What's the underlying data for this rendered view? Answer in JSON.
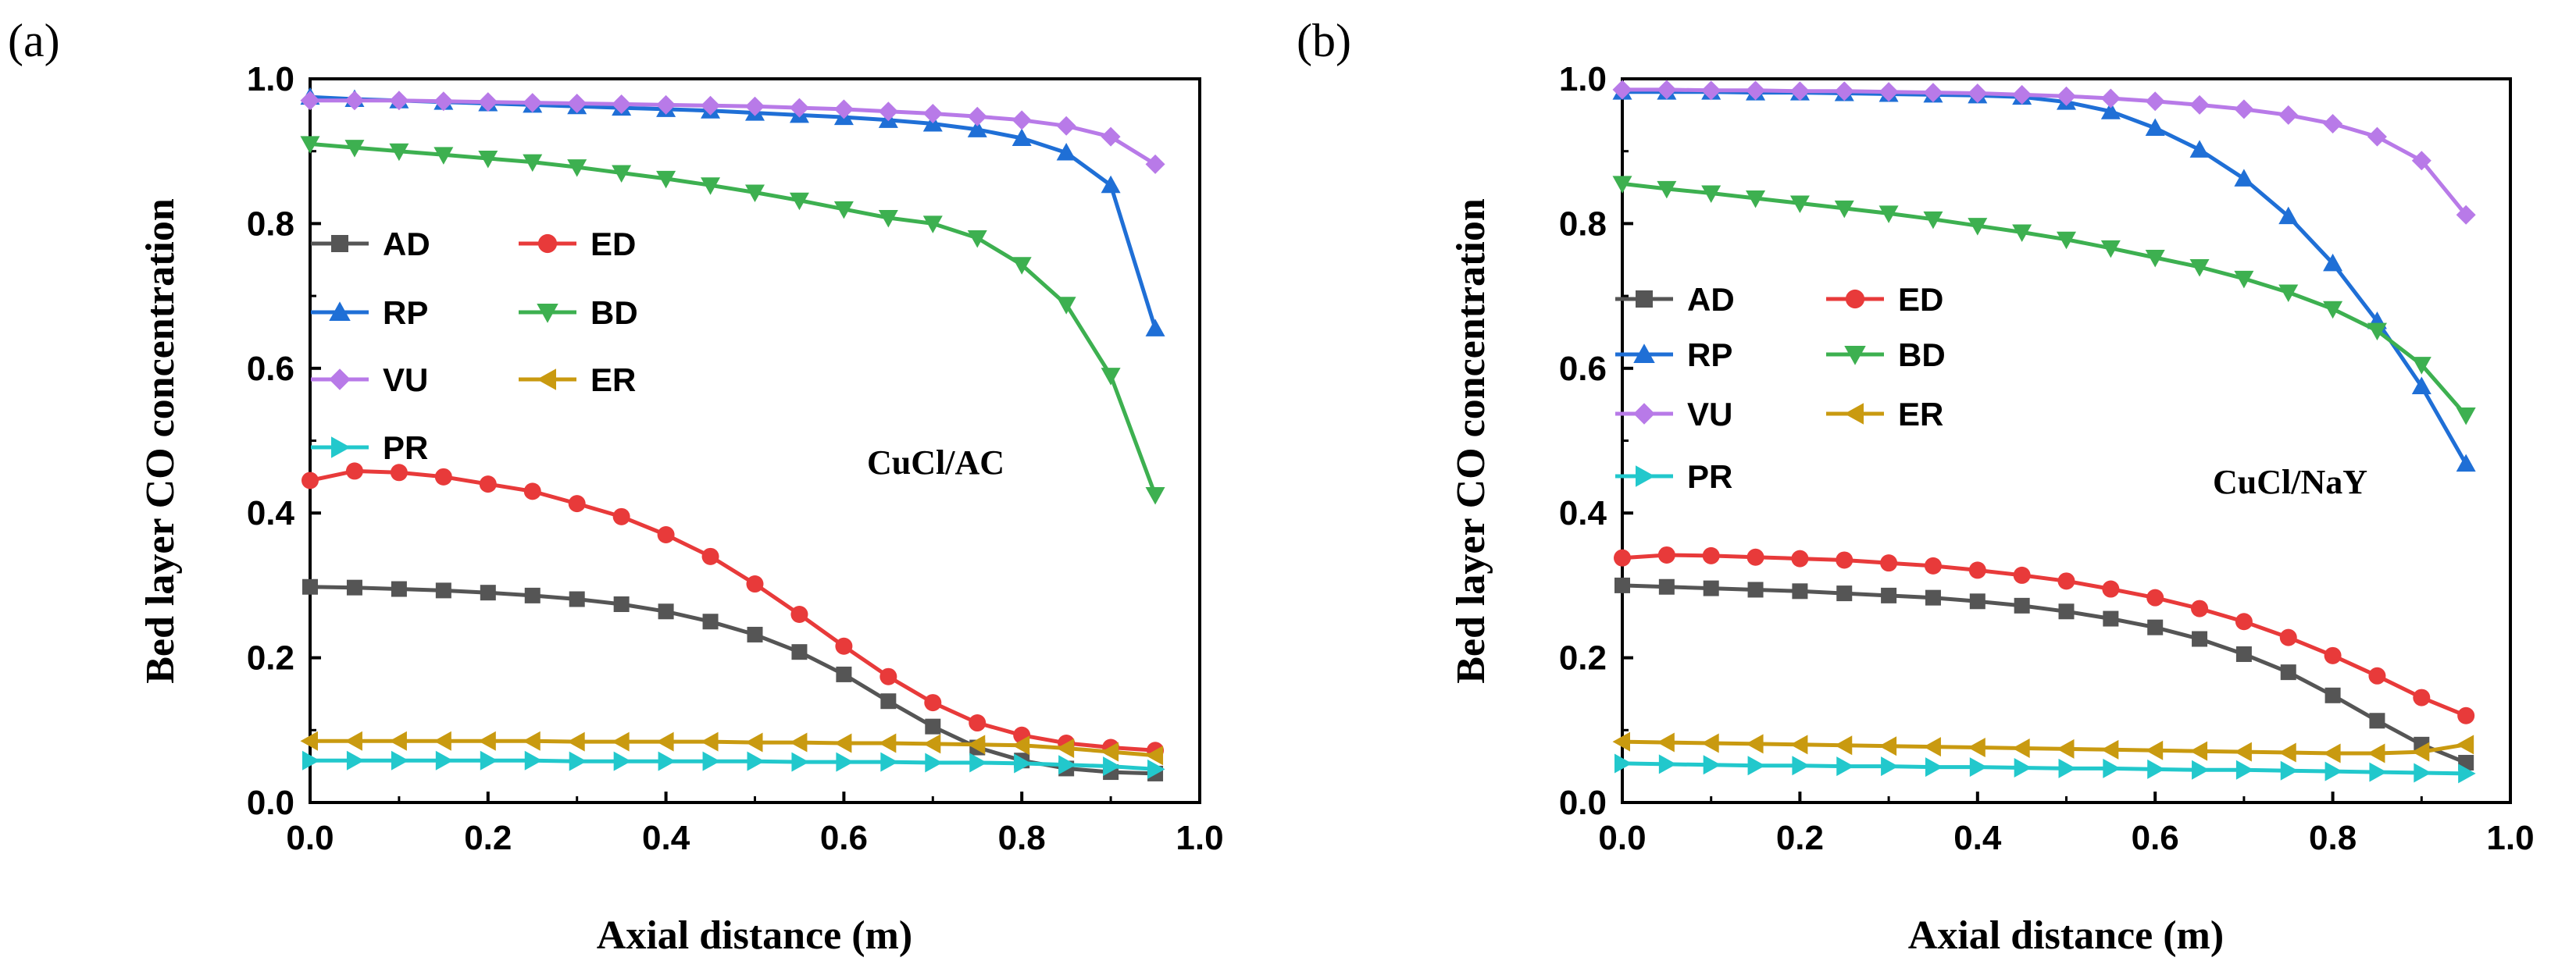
{
  "chart_data": [
    {
      "type": "line",
      "panel_label": "(a)",
      "annotation": "CuCl/AC",
      "xlabel": "Axial distance (m)",
      "ylabel": "Bed layer CO concentration",
      "xlim": [
        0.0,
        1.0
      ],
      "ylim": [
        0.0,
        1.0
      ],
      "xticks": [
        "0.0",
        "0.2",
        "0.4",
        "0.6",
        "0.8",
        "1.0"
      ],
      "yticks": [
        "0.0",
        "0.2",
        "0.4",
        "0.6",
        "0.8",
        "1.0"
      ],
      "legend_position": "middle-left",
      "x": [
        0.0,
        0.05,
        0.1,
        0.15,
        0.2,
        0.25,
        0.3,
        0.35,
        0.4,
        0.45,
        0.5,
        0.55,
        0.6,
        0.65,
        0.7,
        0.75,
        0.8,
        0.85,
        0.9,
        0.95
      ],
      "series": [
        {
          "name": "AD",
          "color": "#555555",
          "marker": "square",
          "values": [
            0.298,
            0.297,
            0.295,
            0.293,
            0.29,
            0.286,
            0.281,
            0.274,
            0.264,
            0.25,
            0.232,
            0.208,
            0.177,
            0.14,
            0.105,
            0.076,
            0.058,
            0.047,
            0.042,
            0.04
          ]
        },
        {
          "name": "ED",
          "color": "#e83a3a",
          "marker": "circle",
          "values": [
            0.445,
            0.458,
            0.456,
            0.45,
            0.44,
            0.43,
            0.413,
            0.395,
            0.37,
            0.34,
            0.302,
            0.26,
            0.216,
            0.174,
            0.138,
            0.11,
            0.093,
            0.082,
            0.076,
            0.072
          ]
        },
        {
          "name": "RP",
          "color": "#1f6fd6",
          "marker": "triangle-up",
          "values": [
            0.975,
            0.972,
            0.97,
            0.968,
            0.966,
            0.964,
            0.962,
            0.96,
            0.958,
            0.956,
            0.953,
            0.95,
            0.947,
            0.943,
            0.938,
            0.93,
            0.918,
            0.898,
            0.853,
            0.655
          ]
        },
        {
          "name": "BD",
          "color": "#3db050",
          "marker": "triangle-down",
          "values": [
            0.91,
            0.905,
            0.9,
            0.895,
            0.89,
            0.885,
            0.878,
            0.87,
            0.862,
            0.853,
            0.843,
            0.832,
            0.82,
            0.808,
            0.8,
            0.78,
            0.743,
            0.688,
            0.59,
            0.425
          ]
        },
        {
          "name": "VU",
          "color": "#b87ae8",
          "marker": "diamond",
          "values": [
            0.97,
            0.97,
            0.97,
            0.969,
            0.968,
            0.967,
            0.966,
            0.965,
            0.964,
            0.963,
            0.962,
            0.96,
            0.958,
            0.955,
            0.952,
            0.948,
            0.943,
            0.935,
            0.92,
            0.882
          ]
        },
        {
          "name": "ER",
          "color": "#c99a10",
          "marker": "triangle-left",
          "values": [
            0.085,
            0.085,
            0.085,
            0.085,
            0.085,
            0.085,
            0.084,
            0.084,
            0.084,
            0.084,
            0.083,
            0.083,
            0.082,
            0.082,
            0.081,
            0.08,
            0.079,
            0.075,
            0.07,
            0.065
          ]
        },
        {
          "name": "PR",
          "color": "#22c8cc",
          "marker": "triangle-right",
          "values": [
            0.058,
            0.058,
            0.058,
            0.058,
            0.058,
            0.058,
            0.057,
            0.057,
            0.057,
            0.057,
            0.057,
            0.056,
            0.056,
            0.056,
            0.055,
            0.055,
            0.054,
            0.052,
            0.05,
            0.046
          ]
        }
      ]
    },
    {
      "type": "line",
      "panel_label": "(b)",
      "annotation": "CuCl/NaY",
      "xlabel": "Axial distance (m)",
      "ylabel": "Bed layer CO concentration",
      "xlim": [
        0.0,
        1.0
      ],
      "ylim": [
        0.0,
        1.0
      ],
      "xticks": [
        "0.0",
        "0.2",
        "0.4",
        "0.6",
        "0.8",
        "1.0"
      ],
      "yticks": [
        "0.0",
        "0.2",
        "0.4",
        "0.6",
        "0.8",
        "1.0"
      ],
      "legend_position": "middle-left",
      "x": [
        0.0,
        0.05,
        0.1,
        0.15,
        0.2,
        0.25,
        0.3,
        0.35,
        0.4,
        0.45,
        0.5,
        0.55,
        0.6,
        0.65,
        0.7,
        0.75,
        0.8,
        0.85,
        0.9,
        0.95
      ],
      "series": [
        {
          "name": "AD",
          "color": "#555555",
          "marker": "square",
          "values": [
            0.3,
            0.298,
            0.296,
            0.294,
            0.292,
            0.289,
            0.286,
            0.283,
            0.278,
            0.272,
            0.264,
            0.254,
            0.242,
            0.226,
            0.205,
            0.18,
            0.148,
            0.113,
            0.08,
            0.055
          ]
        },
        {
          "name": "ED",
          "color": "#e83a3a",
          "marker": "circle",
          "values": [
            0.338,
            0.342,
            0.341,
            0.339,
            0.337,
            0.335,
            0.331,
            0.327,
            0.321,
            0.314,
            0.306,
            0.295,
            0.283,
            0.268,
            0.25,
            0.228,
            0.203,
            0.175,
            0.145,
            0.12
          ]
        },
        {
          "name": "RP",
          "color": "#1f6fd6",
          "marker": "triangle-up",
          "values": [
            0.982,
            0.982,
            0.982,
            0.981,
            0.981,
            0.98,
            0.979,
            0.978,
            0.977,
            0.975,
            0.968,
            0.955,
            0.932,
            0.902,
            0.862,
            0.81,
            0.745,
            0.665,
            0.575,
            0.468
          ]
        },
        {
          "name": "BD",
          "color": "#3db050",
          "marker": "triangle-down",
          "values": [
            0.855,
            0.848,
            0.842,
            0.835,
            0.828,
            0.821,
            0.814,
            0.806,
            0.797,
            0.788,
            0.778,
            0.766,
            0.753,
            0.74,
            0.724,
            0.705,
            0.682,
            0.652,
            0.605,
            0.535
          ]
        },
        {
          "name": "VU",
          "color": "#b87ae8",
          "marker": "diamond",
          "values": [
            0.985,
            0.985,
            0.984,
            0.984,
            0.983,
            0.983,
            0.982,
            0.981,
            0.98,
            0.978,
            0.976,
            0.973,
            0.969,
            0.964,
            0.958,
            0.95,
            0.938,
            0.92,
            0.887,
            0.812
          ]
        },
        {
          "name": "ER",
          "color": "#c99a10",
          "marker": "triangle-left",
          "values": [
            0.084,
            0.083,
            0.082,
            0.081,
            0.08,
            0.079,
            0.078,
            0.077,
            0.076,
            0.075,
            0.074,
            0.073,
            0.072,
            0.071,
            0.07,
            0.069,
            0.068,
            0.068,
            0.07,
            0.08
          ]
        },
        {
          "name": "PR",
          "color": "#22c8cc",
          "marker": "triangle-right",
          "values": [
            0.054,
            0.053,
            0.052,
            0.051,
            0.051,
            0.05,
            0.05,
            0.049,
            0.049,
            0.048,
            0.047,
            0.047,
            0.046,
            0.045,
            0.045,
            0.044,
            0.043,
            0.042,
            0.041,
            0.04
          ]
        }
      ]
    }
  ]
}
